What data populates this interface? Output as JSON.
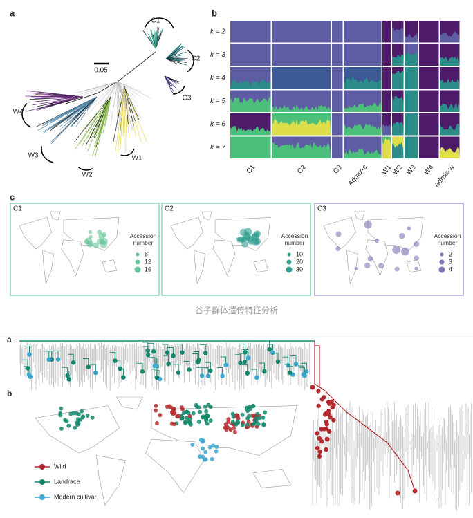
{
  "top": {
    "panel_a": {
      "label": "a",
      "scale_bar": "0.05",
      "clades": [
        "C1",
        "C2",
        "C3",
        "W4",
        "W3",
        "W2",
        "W1"
      ]
    },
    "panel_b": {
      "label": "b",
      "k_rows": [
        "k = 2",
        "k = 3",
        "k = 4",
        "k = 5",
        "k = 6",
        "k = 7"
      ],
      "groups": [
        "C1",
        "C2",
        "C3",
        "Admix-c",
        "W1",
        "W2",
        "W3",
        "W4",
        "Admix-w"
      ]
    },
    "panel_c": {
      "label": "c",
      "maps": [
        {
          "name": "C1",
          "legend_title": "Accession number",
          "sizes": [
            8,
            12,
            16
          ]
        },
        {
          "name": "C2",
          "legend_title": "Accession number",
          "sizes": [
            10,
            20,
            30
          ]
        },
        {
          "name": "C3",
          "legend_title": "Accession number",
          "sizes": [
            2,
            3,
            4
          ]
        }
      ]
    }
  },
  "caption": "谷子群体遗传特征分析",
  "bottom": {
    "panel_a": "a",
    "panel_b": "b",
    "legend": [
      "Wild",
      "Landrace",
      "Modern cultivar"
    ]
  }
}
